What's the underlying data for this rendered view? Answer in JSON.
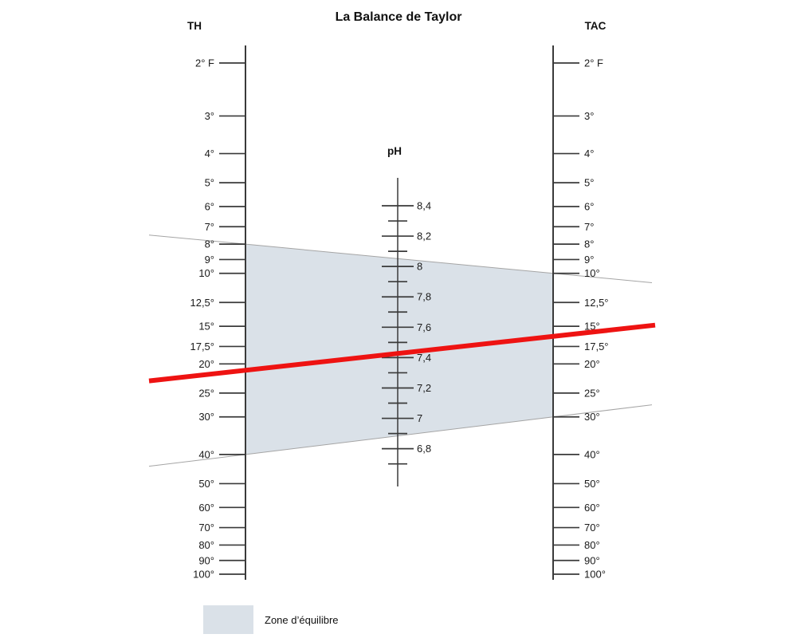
{
  "colors": {
    "background": "#ffffff",
    "zone_fill": "#dae1e8",
    "red_line": "#ee1312",
    "boundary_line": "#a5a5a5",
    "axis": "#3a3a3a",
    "text": "#1a1a1a"
  },
  "legend": {
    "label": "Zone d’équilibre"
  },
  "chart_data": {
    "type": "line",
    "subtype": "nomogram",
    "title": "La Balance de Taylor",
    "left_axis": {
      "name": "TH",
      "scale": "logarithmic",
      "range": [
        2,
        100
      ],
      "ticks": [
        {
          "value": 2,
          "label": "2° F"
        },
        {
          "value": 3,
          "label": "3°"
        },
        {
          "value": 4,
          "label": "4°"
        },
        {
          "value": 5,
          "label": "5°"
        },
        {
          "value": 6,
          "label": "6°"
        },
        {
          "value": 7,
          "label": "7°"
        },
        {
          "value": 8,
          "label": "8°"
        },
        {
          "value": 9,
          "label": "9°"
        },
        {
          "value": 10,
          "label": "10°"
        },
        {
          "value": 12.5,
          "label": "12,5°"
        },
        {
          "value": 15,
          "label": "15°"
        },
        {
          "value": 17.5,
          "label": "17,5°"
        },
        {
          "value": 20,
          "label": "20°"
        },
        {
          "value": 25,
          "label": "25°"
        },
        {
          "value": 30,
          "label": "30°"
        },
        {
          "value": 40,
          "label": "40°"
        },
        {
          "value": 50,
          "label": "50°"
        },
        {
          "value": 60,
          "label": "60°"
        },
        {
          "value": 70,
          "label": "70°"
        },
        {
          "value": 80,
          "label": "80°"
        },
        {
          "value": 90,
          "label": "90°"
        },
        {
          "value": 100,
          "label": "100°"
        }
      ]
    },
    "center_axis": {
      "name": "pH",
      "scale": "linear",
      "range": [
        6.55,
        8.58
      ],
      "major_ticks": [
        {
          "value": 8.4,
          "label": "8,4"
        },
        {
          "value": 8.2,
          "label": "8,2"
        },
        {
          "value": 8.0,
          "label": "8"
        },
        {
          "value": 7.8,
          "label": "7,8"
        },
        {
          "value": 7.6,
          "label": "7,6"
        },
        {
          "value": 7.4,
          "label": "7,4"
        },
        {
          "value": 7.2,
          "label": "7,2"
        },
        {
          "value": 7.0,
          "label": "7"
        },
        {
          "value": 6.8,
          "label": "6,8"
        }
      ],
      "minor_ticks": [
        8.3,
        8.1,
        7.9,
        7.7,
        7.5,
        7.3,
        7.1,
        6.9,
        6.7
      ]
    },
    "right_axis": {
      "name": "TAC",
      "scale": "logarithmic",
      "range": [
        2,
        100
      ],
      "ticks": [
        {
          "value": 2,
          "label": "2° F"
        },
        {
          "value": 3,
          "label": "3°"
        },
        {
          "value": 4,
          "label": "4°"
        },
        {
          "value": 5,
          "label": "5°"
        },
        {
          "value": 6,
          "label": "6°"
        },
        {
          "value": 7,
          "label": "7°"
        },
        {
          "value": 8,
          "label": "8°"
        },
        {
          "value": 9,
          "label": "9°"
        },
        {
          "value": 10,
          "label": "10°"
        },
        {
          "value": 12.5,
          "label": "12,5°"
        },
        {
          "value": 15,
          "label": "15°"
        },
        {
          "value": 17.5,
          "label": "17,5°"
        },
        {
          "value": 20,
          "label": "20°"
        },
        {
          "value": 25,
          "label": "25°"
        },
        {
          "value": 30,
          "label": "30°"
        },
        {
          "value": 40,
          "label": "40°"
        },
        {
          "value": 50,
          "label": "50°"
        },
        {
          "value": 60,
          "label": "60°"
        },
        {
          "value": 70,
          "label": "70°"
        },
        {
          "value": 80,
          "label": "80°"
        },
        {
          "value": 90,
          "label": "90°"
        },
        {
          "value": 100,
          "label": "100°"
        }
      ]
    },
    "zone": {
      "label": "Zone d’équilibre",
      "th_range": [
        8,
        40
      ],
      "tac_range": [
        10,
        30
      ]
    },
    "boundary_lines": [
      {
        "th": 8,
        "tac": 10
      },
      {
        "th": 40,
        "tac": 30
      }
    ],
    "red_line": {
      "th": 21,
      "ph": 7.43,
      "tac": 16.2
    }
  }
}
